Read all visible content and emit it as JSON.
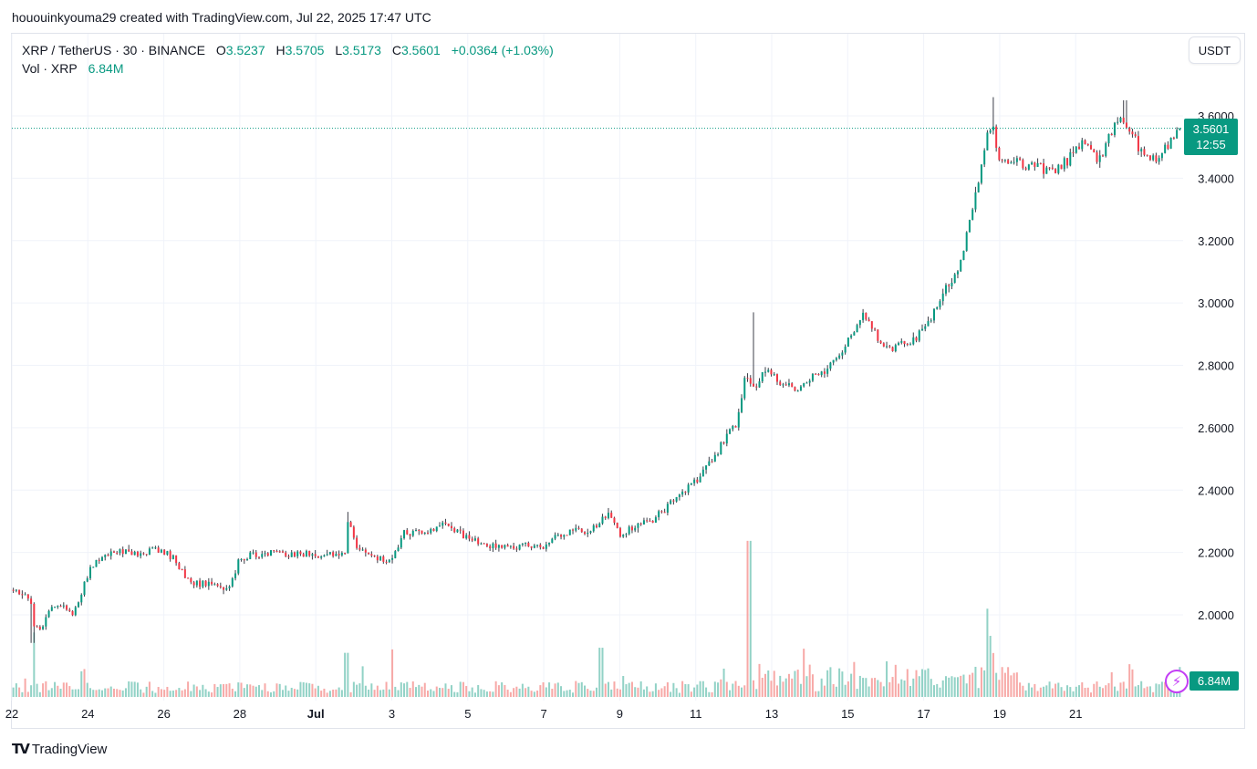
{
  "header": {
    "credit": "hououinkyouma29 created with TradingView.com, Jul 22, 2025 17:47 UTC"
  },
  "legend": {
    "symbol": "XRP / TetherUS · 30 · BINANCE",
    "o_label": "O",
    "o_value": "3.5237",
    "h_label": "H",
    "h_value": "3.5705",
    "l_label": "L",
    "l_value": "3.5173",
    "c_label": "C",
    "c_value": "3.5601",
    "change": "+0.0364 (+1.03%)",
    "vol_label": "Vol · XRP",
    "vol_value": "6.84M"
  },
  "toolbar": {
    "unit_button": "USDT"
  },
  "price_tag": {
    "price": "3.5601",
    "countdown": "12:55"
  },
  "volume_tag": "6.84M",
  "footer": {
    "logo_text": "TradingView"
  },
  "colors": {
    "up": "#089981",
    "down": "#f23645",
    "grid": "#f0f3fa",
    "vol_up": "#92d2c6",
    "vol_down": "#f7a9a7"
  },
  "icons": {
    "alert": "lightning-bolt-icon",
    "logo": "tradingview-logo-icon"
  },
  "chart_data": {
    "type": "candlestick",
    "symbol": "XRP / TetherUS",
    "interval": "30",
    "y_axis": {
      "ticks": [
        2.0,
        2.2,
        2.4,
        2.6,
        2.8,
        3.0,
        3.2,
        3.4,
        3.6
      ],
      "tick_labels": [
        "2.0000",
        "2.2000",
        "2.4000",
        "2.6000",
        "2.8000",
        "3.0000",
        "3.2000",
        "3.4000",
        "3.6000"
      ],
      "ylim": [
        1.6,
        3.82
      ]
    },
    "x_axis": {
      "ticks": [
        22,
        24,
        26,
        28,
        30,
        32,
        34,
        36,
        38,
        40,
        42,
        44,
        46,
        48,
        50
      ],
      "tick_labels": [
        "22",
        "24",
        "26",
        "28",
        "Jul",
        "3",
        "5",
        "7",
        "9",
        "11",
        "13",
        "15",
        "17",
        "19",
        "21"
      ],
      "unit": "day index (June 22 = 22, Jul 1 = 31)",
      "xlim": [
        22.0,
        52.78
      ]
    },
    "last_price": 3.5601,
    "price_path": [
      [
        22.0,
        2.08
      ],
      [
        22.3,
        2.07
      ],
      [
        22.5,
        2.03
      ],
      [
        22.6,
        1.96
      ],
      [
        22.8,
        1.95
      ],
      [
        23.0,
        2.02
      ],
      [
        23.3,
        2.03
      ],
      [
        23.6,
        2.0
      ],
      [
        23.8,
        2.06
      ],
      [
        24.1,
        2.16
      ],
      [
        24.4,
        2.19
      ],
      [
        24.8,
        2.21
      ],
      [
        25.3,
        2.19
      ],
      [
        25.7,
        2.21
      ],
      [
        26.0,
        2.2
      ],
      [
        26.3,
        2.18
      ],
      [
        26.6,
        2.11
      ],
      [
        26.9,
        2.1
      ],
      [
        27.3,
        2.1
      ],
      [
        27.7,
        2.08
      ],
      [
        28.0,
        2.18
      ],
      [
        28.3,
        2.19
      ],
      [
        28.7,
        2.2
      ],
      [
        29.3,
        2.19
      ],
      [
        29.8,
        2.2
      ],
      [
        30.1,
        2.18
      ],
      [
        30.5,
        2.2
      ],
      [
        30.8,
        2.19
      ],
      [
        30.85,
        2.3
      ],
      [
        31.1,
        2.21
      ],
      [
        31.5,
        2.19
      ],
      [
        31.8,
        2.17
      ],
      [
        32.1,
        2.2
      ],
      [
        32.3,
        2.26
      ],
      [
        32.7,
        2.27
      ],
      [
        33.0,
        2.27
      ],
      [
        33.4,
        2.3
      ],
      [
        33.7,
        2.27
      ],
      [
        34.1,
        2.24
      ],
      [
        34.5,
        2.22
      ],
      [
        35.0,
        2.22
      ],
      [
        35.4,
        2.22
      ],
      [
        35.7,
        2.22
      ],
      [
        36.0,
        2.21
      ],
      [
        36.4,
        2.26
      ],
      [
        36.8,
        2.27
      ],
      [
        37.2,
        2.27
      ],
      [
        37.5,
        2.3
      ],
      [
        37.7,
        2.32
      ],
      [
        38.0,
        2.26
      ],
      [
        38.4,
        2.28
      ],
      [
        38.8,
        2.3
      ],
      [
        39.2,
        2.34
      ],
      [
        39.6,
        2.39
      ],
      [
        40.0,
        2.43
      ],
      [
        40.4,
        2.49
      ],
      [
        40.8,
        2.57
      ],
      [
        41.1,
        2.62
      ],
      [
        41.3,
        2.76
      ],
      [
        41.6,
        2.74
      ],
      [
        41.9,
        2.79
      ],
      [
        42.2,
        2.75
      ],
      [
        42.6,
        2.72
      ],
      [
        43.0,
        2.76
      ],
      [
        43.4,
        2.78
      ],
      [
        43.8,
        2.83
      ],
      [
        44.1,
        2.9
      ],
      [
        44.4,
        2.96
      ],
      [
        44.7,
        2.91
      ],
      [
        45.0,
        2.85
      ],
      [
        45.3,
        2.86
      ],
      [
        45.6,
        2.87
      ],
      [
        45.9,
        2.9
      ],
      [
        46.2,
        2.95
      ],
      [
        46.6,
        3.05
      ],
      [
        46.9,
        3.1
      ],
      [
        47.2,
        3.26
      ],
      [
        47.4,
        3.36
      ],
      [
        47.6,
        3.5
      ],
      [
        47.8,
        3.58
      ],
      [
        48.0,
        3.45
      ],
      [
        48.4,
        3.46
      ],
      [
        48.7,
        3.44
      ],
      [
        49.0,
        3.44
      ],
      [
        49.3,
        3.42
      ],
      [
        49.6,
        3.44
      ],
      [
        49.8,
        3.46
      ],
      [
        50.0,
        3.5
      ],
      [
        50.3,
        3.52
      ],
      [
        50.6,
        3.45
      ],
      [
        50.9,
        3.55
      ],
      [
        51.2,
        3.58
      ],
      [
        51.5,
        3.54
      ],
      [
        51.8,
        3.46
      ],
      [
        52.1,
        3.46
      ],
      [
        52.4,
        3.5
      ],
      [
        52.78,
        3.5601
      ]
    ],
    "price_extremes": [
      {
        "x": 22.55,
        "low": 1.91
      },
      {
        "x": 30.85,
        "high": 2.33
      },
      {
        "x": 41.5,
        "high": 2.97
      },
      {
        "x": 47.85,
        "high": 3.66
      },
      {
        "x": 51.3,
        "high": 3.65
      }
    ],
    "volume_spikes": [
      {
        "x": 22.6,
        "value": 1.9
      },
      {
        "x": 30.8,
        "value": 1.3
      },
      {
        "x": 32.0,
        "value": 1.4
      },
      {
        "x": 37.5,
        "value": 1.45
      },
      {
        "x": 41.4,
        "value": 4.6
      },
      {
        "x": 41.45,
        "value": 3.0
      },
      {
        "x": 47.7,
        "value": 2.6
      },
      {
        "x": 47.75,
        "value": 1.8
      }
    ],
    "volume_axis_max": 5.0
  }
}
